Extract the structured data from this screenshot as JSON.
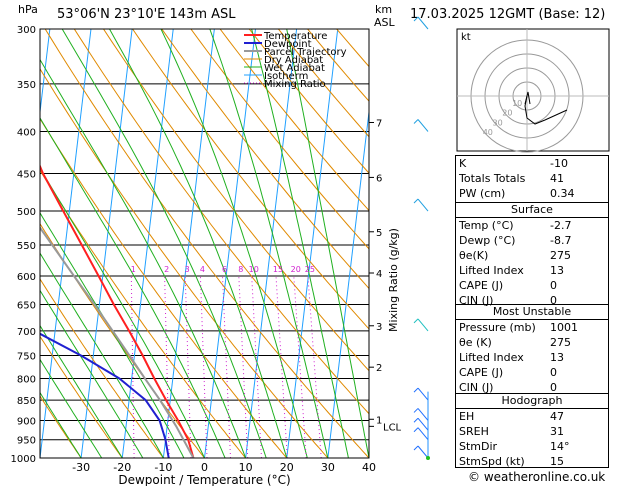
{
  "header": {
    "location": "53°06'N  23°10'E  143m  ASL",
    "datetime": "17.03.2025  12GMT  (Base: 12)",
    "p_unit": "hPa",
    "km_label": "km",
    "asl_label": "ASL"
  },
  "chart_data": {
    "type": "line",
    "title": "53°06'N  23°10'E  143m  ASL",
    "xlabel": "Dewpoint / Temperature (°C)",
    "ylabel": "hPa",
    "y2label": "Mixing Ratio (g/kg)",
    "xlim": [
      -40,
      40
    ],
    "ylim": [
      1000,
      300
    ],
    "y_scale": "log",
    "skew_per_decade": 97.5,
    "x_ticks": [
      -30,
      -20,
      -10,
      0,
      10,
      20,
      30,
      40
    ],
    "y_ticks": [
      300,
      350,
      400,
      450,
      500,
      550,
      600,
      650,
      700,
      750,
      800,
      850,
      900,
      950,
      1000
    ],
    "legend": [
      "Temperature",
      "Dewpoint",
      "Parcel Trajectory",
      "Dry Adiabat",
      "Wet Adiabat",
      "Isotherm",
      "Mixing Ratio"
    ],
    "legend_position": "top-left",
    "km_ticks": [
      {
        "km": "1",
        "p": 897
      },
      {
        "km": "2",
        "p": 775
      },
      {
        "km": "3",
        "p": 690
      },
      {
        "km": "4",
        "p": 595
      },
      {
        "km": "5",
        "p": 530
      },
      {
        "km": "6",
        "p": 455
      },
      {
        "km": "7",
        "p": 390
      }
    ],
    "lcl": {
      "label": "LCL",
      "p": 915
    },
    "mixing_ratio_labels": [
      "1",
      "2",
      "3",
      "4",
      "6",
      "8",
      "10",
      "15",
      "20",
      "25"
    ],
    "mixing_ratio_values": [
      1,
      2,
      3,
      4,
      6,
      8,
      10,
      15,
      20,
      25
    ],
    "series": [
      {
        "name": "Temperature",
        "color": "#ff2020",
        "points": [
          [
            1000,
            -2.7
          ],
          [
            950,
            -4.5
          ],
          [
            900,
            -7.5
          ],
          [
            850,
            -11
          ],
          [
            800,
            -14.5
          ],
          [
            750,
            -18
          ],
          [
            700,
            -22
          ],
          [
            650,
            -26.5
          ],
          [
            600,
            -31
          ],
          [
            550,
            -36
          ],
          [
            500,
            -41.5
          ],
          [
            450,
            -47.5
          ],
          [
            400,
            -53
          ],
          [
            350,
            -57.5
          ],
          [
            300,
            -62
          ]
        ]
      },
      {
        "name": "Dewpoint",
        "color": "#2020d0",
        "points": [
          [
            1000,
            -8.7
          ],
          [
            950,
            -10
          ],
          [
            900,
            -12
          ],
          [
            850,
            -16
          ],
          [
            800,
            -23
          ],
          [
            750,
            -33
          ],
          [
            700,
            -45
          ],
          [
            650,
            -57
          ],
          [
            600,
            -63
          ],
          [
            550,
            -67
          ],
          [
            500,
            -70
          ],
          [
            450,
            -74
          ],
          [
            400,
            -79
          ],
          [
            350,
            -84
          ],
          [
            300,
            -89
          ]
        ]
      },
      {
        "name": "Parcel Trajectory",
        "color": "#999999",
        "points": [
          [
            1000,
            -2.7
          ],
          [
            915,
            -7.8
          ],
          [
            850,
            -12.5
          ],
          [
            800,
            -16.8
          ],
          [
            750,
            -21.2
          ],
          [
            700,
            -26
          ],
          [
            650,
            -31.2
          ],
          [
            600,
            -37
          ],
          [
            550,
            -43.2
          ],
          [
            500,
            -50
          ],
          [
            450,
            -57.5
          ],
          [
            400,
            -65
          ],
          [
            350,
            -73
          ],
          [
            300,
            -81
          ]
        ]
      }
    ],
    "wind_barbs_hpa": [
      300,
      400,
      500,
      700,
      850,
      900,
      925,
      950,
      1000
    ]
  },
  "hodograph": {
    "label": "kt",
    "ring_labels": [
      "10",
      "20",
      "30",
      "40"
    ]
  },
  "indices": {
    "group1": [
      {
        "k": "K",
        "v": "-10"
      },
      {
        "k": "Totals Totals",
        "v": "41"
      },
      {
        "k": "PW (cm)",
        "v": "0.34"
      }
    ],
    "surface": {
      "title": "Surface",
      "rows": [
        {
          "k": "Temp (°C)",
          "v": "-2.7"
        },
        {
          "k": "Dewp (°C)",
          "v": "-8.7"
        },
        {
          "k": "θe(K)",
          "v": "275"
        },
        {
          "k": "Lifted Index",
          "v": "13"
        },
        {
          "k": "CAPE (J)",
          "v": "0"
        },
        {
          "k": "CIN (J)",
          "v": "0"
        }
      ]
    },
    "most_unstable": {
      "title": "Most Unstable",
      "rows": [
        {
          "k": "Pressure (mb)",
          "v": "1001"
        },
        {
          "k": "θe (K)",
          "v": "275"
        },
        {
          "k": "Lifted Index",
          "v": "13"
        },
        {
          "k": "CAPE (J)",
          "v": "0"
        },
        {
          "k": "CIN (J)",
          "v": "0"
        }
      ]
    },
    "hodograph_box": {
      "title": "Hodograph",
      "rows": [
        {
          "k": "EH",
          "v": "47"
        },
        {
          "k": "SREH",
          "v": "31"
        },
        {
          "k": "StmDir",
          "v": "14°"
        },
        {
          "k": "StmSpd (kt)",
          "v": "15"
        }
      ]
    }
  },
  "footer": {
    "copyright": "© weatheronline.co.uk"
  },
  "colors": {
    "temperature": "#ff2020",
    "dewpoint": "#2020d0",
    "parcel": "#999999",
    "dry_adiabat": "#e08a00",
    "wet_adiabat": "#20b020",
    "isotherm": "#20a0ff",
    "mixing_ratio": "#d020d0"
  }
}
